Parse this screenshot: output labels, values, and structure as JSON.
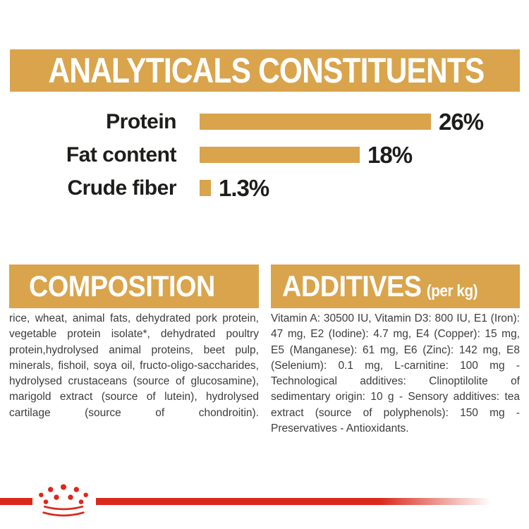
{
  "colors": {
    "gold": "#D9A44C",
    "ink": "#1D1D1B",
    "body_ink": "#3C3C3B",
    "red": "#DA291C",
    "background": "#FFFFFF"
  },
  "analyticals": {
    "title": "ANALYTICALS CONSTITUENTS"
  },
  "chart_data": {
    "type": "bar",
    "orientation": "horizontal",
    "title": "ANALYTICALS CONSTITUENTS",
    "categories": [
      "Protein",
      "Fat content",
      "Crude fiber"
    ],
    "values": [
      26,
      18,
      1.3
    ],
    "unit": "%",
    "value_labels": [
      "26%",
      "18%",
      "1.3%"
    ],
    "xlim": [
      0,
      28
    ],
    "grid": false,
    "bar_color": "#D9A44C",
    "value_label_position": "right-of-bar"
  },
  "composition": {
    "title": "COMPOSITION",
    "body": "rice, wheat, animal fats, dehydrated pork protein, vegetable protein isolate*, dehydrated poultry protein,hydrolysed animal proteins, beet pulp, minerals, fishoil, soya oil, fructo-oligo-saccharides, hydrolysed crustaceans (source of glucosamine), marigold extract (source of lutein), hydrolysed cartilage (source of chondroitin)."
  },
  "additives": {
    "title": "ADDITIVES",
    "title_suffix": "(per kg)",
    "body": "Vitamin A: 30500 IU, Vitamin D3: 800 IU, E1 (Iron): 47 mg, E2 (Iodine): 4.7 mg, E4 (Copper): 15 mg, E5 (Manganese): 61 mg, E6 (Zinc): 142 mg, E8 (Selenium): 0.1 mg, L-carnitine: 100 mg - Technological additives: Clinoptilolite of sedimentary origin: 10 g - Sensory additives: tea extract (source of polyphenols): 150 mg - Preservatives - Antioxidants."
  },
  "footer": {
    "logo": "royal-canin-crown"
  }
}
